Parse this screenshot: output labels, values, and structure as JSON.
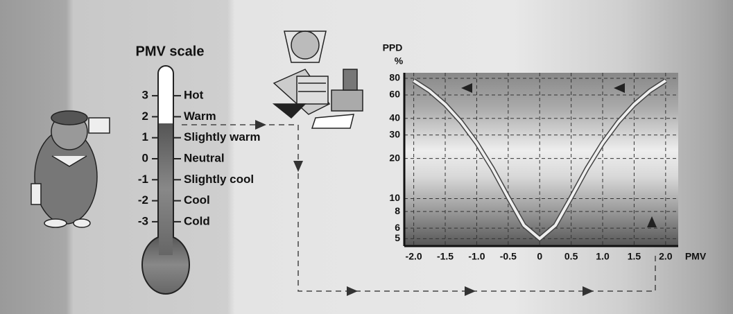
{
  "title": "PMV scale",
  "pmv_scale": {
    "levels": [
      {
        "value": 3,
        "label": "Hot"
      },
      {
        "value": 2,
        "label": "Warm"
      },
      {
        "value": 1,
        "label": "Slightly warm"
      },
      {
        "value": 0,
        "label": "Neutral"
      },
      {
        "value": -1,
        "label": "Slightly cool"
      },
      {
        "value": -2,
        "label": "Cool"
      },
      {
        "value": -3,
        "label": "Cold"
      }
    ]
  },
  "chart_data": {
    "type": "line",
    "y_label": "PPD",
    "y_unit": "%",
    "x_label": "PMV",
    "log_y": true,
    "grid": true,
    "x": [
      -2,
      -1.75,
      -1.5,
      -1.25,
      -1,
      -0.75,
      -0.5,
      -0.25,
      0,
      0.25,
      0.5,
      0.75,
      1,
      1.25,
      1.5,
      1.75,
      2
    ],
    "series": [
      {
        "color": "#eeeeee",
        "values": [
          76.8,
          64.4,
          50.9,
          37.7,
          26.1,
          16.8,
          10.2,
          6.3,
          5,
          6.3,
          10.2,
          16.8,
          26.1,
          37.7,
          50.9,
          64.4,
          76.8
        ]
      }
    ],
    "xlim": [
      -2.15,
      2.2
    ],
    "ylim": [
      4.4,
      88
    ],
    "xticks": [
      {
        "value": -2,
        "label": "-2.0"
      },
      -1.5,
      {
        "value": -1,
        "label": "-1.0"
      },
      -0.5,
      0,
      0.5,
      {
        "value": 1,
        "label": "1.0"
      },
      1.5,
      {
        "value": 2,
        "label": "2.0"
      }
    ],
    "yticks": [
      5,
      6,
      8,
      10,
      20,
      30,
      40,
      60,
      80
    ]
  }
}
